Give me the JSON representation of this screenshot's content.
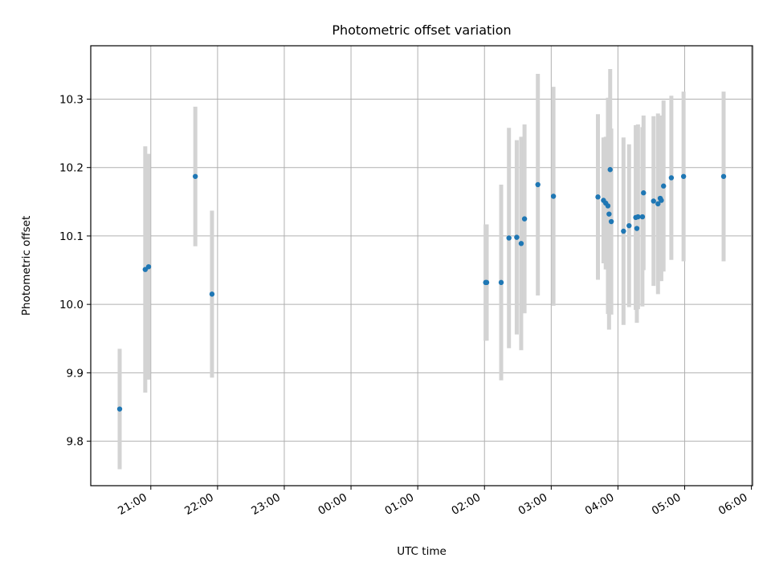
{
  "chart_data": {
    "type": "scatter",
    "title": "Photometric offset variation",
    "xlabel": "UTC time",
    "ylabel": "Photometric offset",
    "x_ticks": [
      "21:00",
      "22:00",
      "23:00",
      "00:00",
      "01:00",
      "02:00",
      "03:00",
      "04:00",
      "05:00",
      "06:00"
    ],
    "y_ticks": [
      "9.8",
      "9.9",
      "10.0",
      "10.1",
      "10.2",
      "10.3"
    ],
    "xlim": [
      "20:06",
      "06:01"
    ],
    "ylim": [
      9.735,
      10.378
    ],
    "grid": true,
    "colors": {
      "marker": "#1f77b4",
      "errorbar": "#d3d3d3",
      "grid": "#b0b0b0"
    },
    "points": [
      {
        "time": "20:32",
        "y": 9.847,
        "err": 0.088
      },
      {
        "time": "20:55",
        "y": 10.051,
        "err": 0.18
      },
      {
        "time": "20:58",
        "y": 10.055,
        "err": 0.165
      },
      {
        "time": "21:40",
        "y": 10.187,
        "err": 0.102
      },
      {
        "time": "21:55",
        "y": 10.015,
        "err": 0.122
      },
      {
        "time": "02:01",
        "y": 10.032,
        "err": 0.085
      },
      {
        "time": "02:02",
        "y": 10.032,
        "err": 0.085
      },
      {
        "time": "02:15",
        "y": 10.032,
        "err": 0.143
      },
      {
        "time": "02:22",
        "y": 10.097,
        "err": 0.161
      },
      {
        "time": "02:29",
        "y": 10.098,
        "err": 0.142
      },
      {
        "time": "02:33",
        "y": 10.089,
        "err": 0.156
      },
      {
        "time": "02:36",
        "y": 10.125,
        "err": 0.138
      },
      {
        "time": "02:48",
        "y": 10.175,
        "err": 0.162
      },
      {
        "time": "03:02",
        "y": 10.158,
        "err": 0.16
      },
      {
        "time": "03:42",
        "y": 10.157,
        "err": 0.121
      },
      {
        "time": "03:47",
        "y": 10.152,
        "err": 0.092
      },
      {
        "time": "03:49",
        "y": 10.148,
        "err": 0.097
      },
      {
        "time": "03:51",
        "y": 10.144,
        "err": 0.158
      },
      {
        "time": "03:52",
        "y": 10.132,
        "err": 0.169
      },
      {
        "time": "03:53",
        "y": 10.197,
        "err": 0.147
      },
      {
        "time": "03:54",
        "y": 10.121,
        "err": 0.136
      },
      {
        "time": "04:05",
        "y": 10.107,
        "err": 0.137
      },
      {
        "time": "04:10",
        "y": 10.115,
        "err": 0.119
      },
      {
        "time": "04:16",
        "y": 10.127,
        "err": 0.135
      },
      {
        "time": "04:17",
        "y": 10.111,
        "err": 0.138
      },
      {
        "time": "04:18",
        "y": 10.128,
        "err": 0.135
      },
      {
        "time": "04:22",
        "y": 10.128,
        "err": 0.131
      },
      {
        "time": "04:23",
        "y": 10.163,
        "err": 0.113
      },
      {
        "time": "04:32",
        "y": 10.151,
        "err": 0.124
      },
      {
        "time": "04:36",
        "y": 10.147,
        "err": 0.132
      },
      {
        "time": "04:38",
        "y": 10.155,
        "err": 0.121
      },
      {
        "time": "04:39",
        "y": 10.152,
        "err": 0.118
      },
      {
        "time": "04:41",
        "y": 10.173,
        "err": 0.125
      },
      {
        "time": "04:48",
        "y": 10.185,
        "err": 0.12
      },
      {
        "time": "04:59",
        "y": 10.187,
        "err": 0.124
      },
      {
        "time": "05:35",
        "y": 10.187,
        "err": 0.124
      }
    ]
  }
}
